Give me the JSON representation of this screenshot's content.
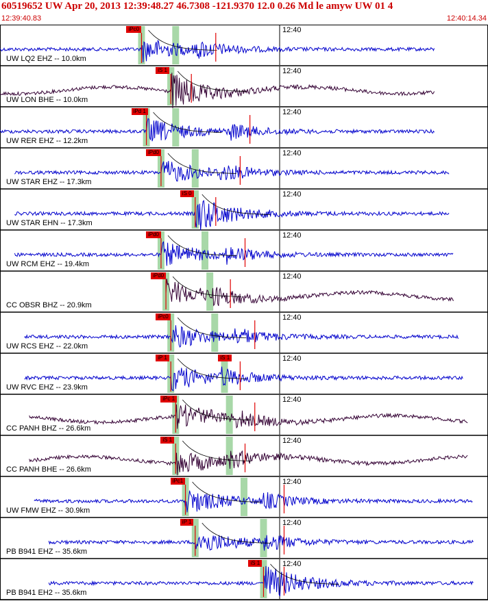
{
  "header": {
    "title": "60519652 UW Apr 20, 2013 12:39:48.27   46.7308 -121.9370 12.0 0.26 Md le amyw UW 01   4",
    "time_start": "12:39:40.83",
    "time_end": "12:40:14.34"
  },
  "colors": {
    "header": "#cc0000",
    "trace_blue": "#0000cc",
    "trace_dark": "#330033",
    "pick": "#e00000",
    "window": "#a8d8a8"
  },
  "panels": [
    {
      "label": "UW LQ2 EHZ -- 10.0km",
      "tick": "12:40",
      "pick": "iPc0",
      "color": "#0000cc",
      "start": 0.0,
      "end": 0.89,
      "ptime": 0.29,
      "stime": 0.4,
      "swin": 0.36
    },
    {
      "label": "UW LON BHE -- 10.0km",
      "tick": "12:40",
      "pick": "iS 1",
      "color": "#330033",
      "start": 0.0,
      "end": 0.89,
      "ptime": 0.35,
      "stime": 0.35,
      "swin": 0.35
    },
    {
      "label": "UW RER EHZ -- 12.2km",
      "tick": "12:40",
      "pick": "iPd 1",
      "color": "#0000cc",
      "start": 0.0,
      "end": 0.89,
      "ptime": 0.3,
      "stime": 0.47,
      "swin": 0.36
    },
    {
      "label": "UW STAR EHZ -- 17.3km",
      "tick": "12:40",
      "pick": "iPd0",
      "color": "#0000cc",
      "start": 0.03,
      "end": 0.92,
      "ptime": 0.33,
      "stime": 0.45,
      "swin": 0.4
    },
    {
      "label": "UW STAR EHN -- 17.3km",
      "tick": "12:40",
      "pick": "iS 0",
      "color": "#0000cc",
      "start": 0.03,
      "end": 0.92,
      "ptime": 0.4,
      "stime": 0.4,
      "swin": 0.4
    },
    {
      "label": "UW RCM EHZ -- 19.4km",
      "tick": "12:40",
      "pick": "iPd0",
      "color": "#0000cc",
      "start": 0.03,
      "end": 0.93,
      "ptime": 0.33,
      "stime": 0.46,
      "swin": 0.42
    },
    {
      "label": "CC OBSR BHZ -- 20.9km",
      "tick": "12:40",
      "pick": "iPd0",
      "color": "#330033",
      "start": 0.34,
      "end": 0.93,
      "ptime": 0.34,
      "stime": 0.43,
      "swin": 0.43
    },
    {
      "label": "UW RCS EHZ -- 22.0km",
      "tick": "12:40",
      "pick": "iPc0",
      "color": "#0000cc",
      "start": 0.05,
      "end": 0.94,
      "ptime": 0.35,
      "stime": 0.48,
      "swin": 0.44
    },
    {
      "label": "UW RVC EHZ -- 23.9km",
      "tick": "12:40",
      "pick": "iP 1",
      "pick2": "iS 1",
      "color": "#0000cc",
      "start": 0.05,
      "end": 0.95,
      "ptime": 0.35,
      "stime": 0.45,
      "swin": 0.46
    },
    {
      "label": "CC PANH BHZ -- 26.6km",
      "tick": "12:40",
      "pick": "iPc 1",
      "color": "#330033",
      "start": 0.06,
      "end": 0.96,
      "ptime": 0.36,
      "stime": 0.48,
      "swin": 0.47
    },
    {
      "label": "CC PANH BHE -- 26.6km",
      "tick": "12:40",
      "pick": "iS 1",
      "color": "#330033",
      "start": 0.06,
      "end": 0.96,
      "ptime": 0.36,
      "stime": 0.46,
      "swin": 0.47
    },
    {
      "label": "UW FMW EHZ -- 30.9km",
      "tick": "12:40",
      "pick": "iPc1",
      "color": "#0000cc",
      "start": 0.07,
      "end": 0.97,
      "ptime": 0.38,
      "stime": 0.54,
      "swin": 0.5
    },
    {
      "label": "PB B941 EHZ -- 35.6km",
      "tick": "12:40",
      "pick": "iP 1",
      "color": "#0000cc",
      "start": 0.1,
      "end": 0.97,
      "ptime": 0.4,
      "stime": 0.54,
      "swin": 0.54
    },
    {
      "label": "PB B941 EH2 -- 35.6km",
      "tick": "12:40",
      "pick": "iS 1",
      "color": "#0000cc",
      "start": 0.1,
      "end": 0.97,
      "ptime": 0.54,
      "stime": 0.54,
      "swin": 0.54
    }
  ]
}
